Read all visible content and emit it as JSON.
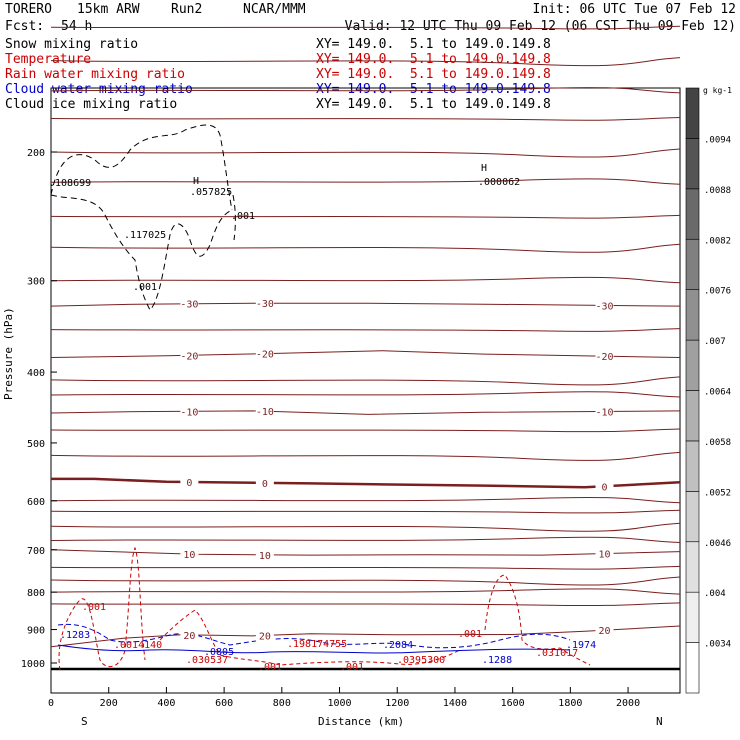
{
  "header": {
    "model": "TORERO",
    "resolution": "15km ARW",
    "run": "Run2",
    "org": "NCAR/MMM",
    "init": "Init: 06 UTC Tue 07 Feb 12",
    "fcst_label": "Fcst:",
    "fcst_value": "54 h",
    "valid": "Valid: 12 UTC Thu 09 Feb 12 (06 CST Thu 09 Feb 12)"
  },
  "legend": [
    {
      "name": "Snow mixing ratio",
      "color": "#000000",
      "xy": "XY= 149.0.  5.1 to 149.0.149.8"
    },
    {
      "name": "Temperature",
      "color": "#cc0000",
      "xy": "XY= 149.0.  5.1 to 149.0.149.8"
    },
    {
      "name": "Rain water mixing ratio",
      "color": "#cc0000",
      "xy": "XY= 149.0.  5.1 to 149.0.149.8"
    },
    {
      "name": "Cloud water mixing ratio",
      "color": "#0000cc",
      "xy": "XY= 149.0.  5.1 to 149.0.149.8"
    },
    {
      "name": "Cloud ice mixing ratio",
      "color": "#000000",
      "xy": "XY= 149.0.  5.1 to 149.0.149.8"
    }
  ],
  "colorbar": {
    "units": "g kg-1",
    "labels": [
      ".0034",
      ".004",
      ".0046",
      ".0052",
      ".0058",
      ".0064",
      ".007",
      ".0076",
      ".0082",
      ".0088",
      ".0094"
    ],
    "colors": [
      "#ffffff",
      "#efefef",
      "#e0e0e0",
      "#d0d0d0",
      "#c0c0c0",
      "#b0b0b0",
      "#a0a0a0",
      "#909090",
      "#808080",
      "#6a6a6a",
      "#555555",
      "#444444"
    ]
  },
  "chart_data": {
    "type": "contour cross-section",
    "xlabel": "Distance (km)",
    "ylabel": "Pressure (hPa)",
    "xlim": [
      0,
      2180
    ],
    "ylim": [
      1050,
      100
    ],
    "y_log": true,
    "x_ticks": [
      0,
      200,
      400,
      600,
      800,
      1000,
      1200,
      1400,
      1600,
      1800,
      2000
    ],
    "y_ticks": [
      200,
      300,
      400,
      500,
      600,
      700,
      800,
      900,
      1000
    ],
    "x_endpoints": [
      "S",
      "N"
    ],
    "temperature_contours": [
      {
        "label": "-30",
        "points": [
          [
            0,
            325
          ],
          [
            300,
            323
          ],
          [
            700,
            322
          ],
          [
            1100,
            322
          ],
          [
            1500,
            323
          ],
          [
            2180,
            325
          ]
        ]
      },
      {
        "label": "-20",
        "points": [
          [
            0,
            382
          ],
          [
            400,
            380
          ],
          [
            800,
            377
          ],
          [
            1150,
            374
          ],
          [
            1500,
            378
          ],
          [
            2180,
            382
          ]
        ]
      },
      {
        "label": "-10",
        "points": [
          [
            0,
            455
          ],
          [
            300,
            453
          ],
          [
            700,
            452
          ],
          [
            1100,
            457
          ],
          [
            1500,
            454
          ],
          [
            2180,
            452
          ]
        ]
      },
      {
        "label": "0",
        "points": [
          [
            0,
            560
          ],
          [
            150,
            560
          ],
          [
            400,
            565
          ],
          [
            900,
            568
          ],
          [
            1500,
            572
          ],
          [
            1850,
            575
          ],
          [
            2180,
            566
          ]
        ]
      },
      {
        "label": "10",
        "points": [
          [
            0,
            700
          ],
          [
            500,
            710
          ],
          [
            900,
            712
          ],
          [
            1300,
            711
          ],
          [
            1700,
            712
          ],
          [
            2180,
            704
          ]
        ]
      },
      {
        "label": "20",
        "points": [
          [
            0,
            950
          ],
          [
            250,
            925
          ],
          [
            450,
            915
          ],
          [
            700,
            918
          ],
          [
            900,
            912
          ],
          [
            1200,
            915
          ],
          [
            1600,
            914
          ],
          [
            1850,
            905
          ],
          [
            2180,
            890
          ]
        ]
      }
    ],
    "contour_labels": [
      "-30",
      "-20",
      "-10",
      "0",
      "10",
      "20"
    ],
    "snow_labels": [
      "H",
      ".057825",
      ".108699",
      ".117025",
      ".001",
      ".001"
    ],
    "cloud_ice_labels": [
      "H",
      ".000062"
    ],
    "rain_labels": [
      ".001",
      ".001",
      ".001",
      ".001",
      ".0014140",
      ".030537",
      ".198174755",
      ".0395300",
      ".031017"
    ],
    "cloud_water_labels": [
      ".1283",
      ".0805",
      ".2084",
      ".1288",
      ".1974"
    ]
  }
}
